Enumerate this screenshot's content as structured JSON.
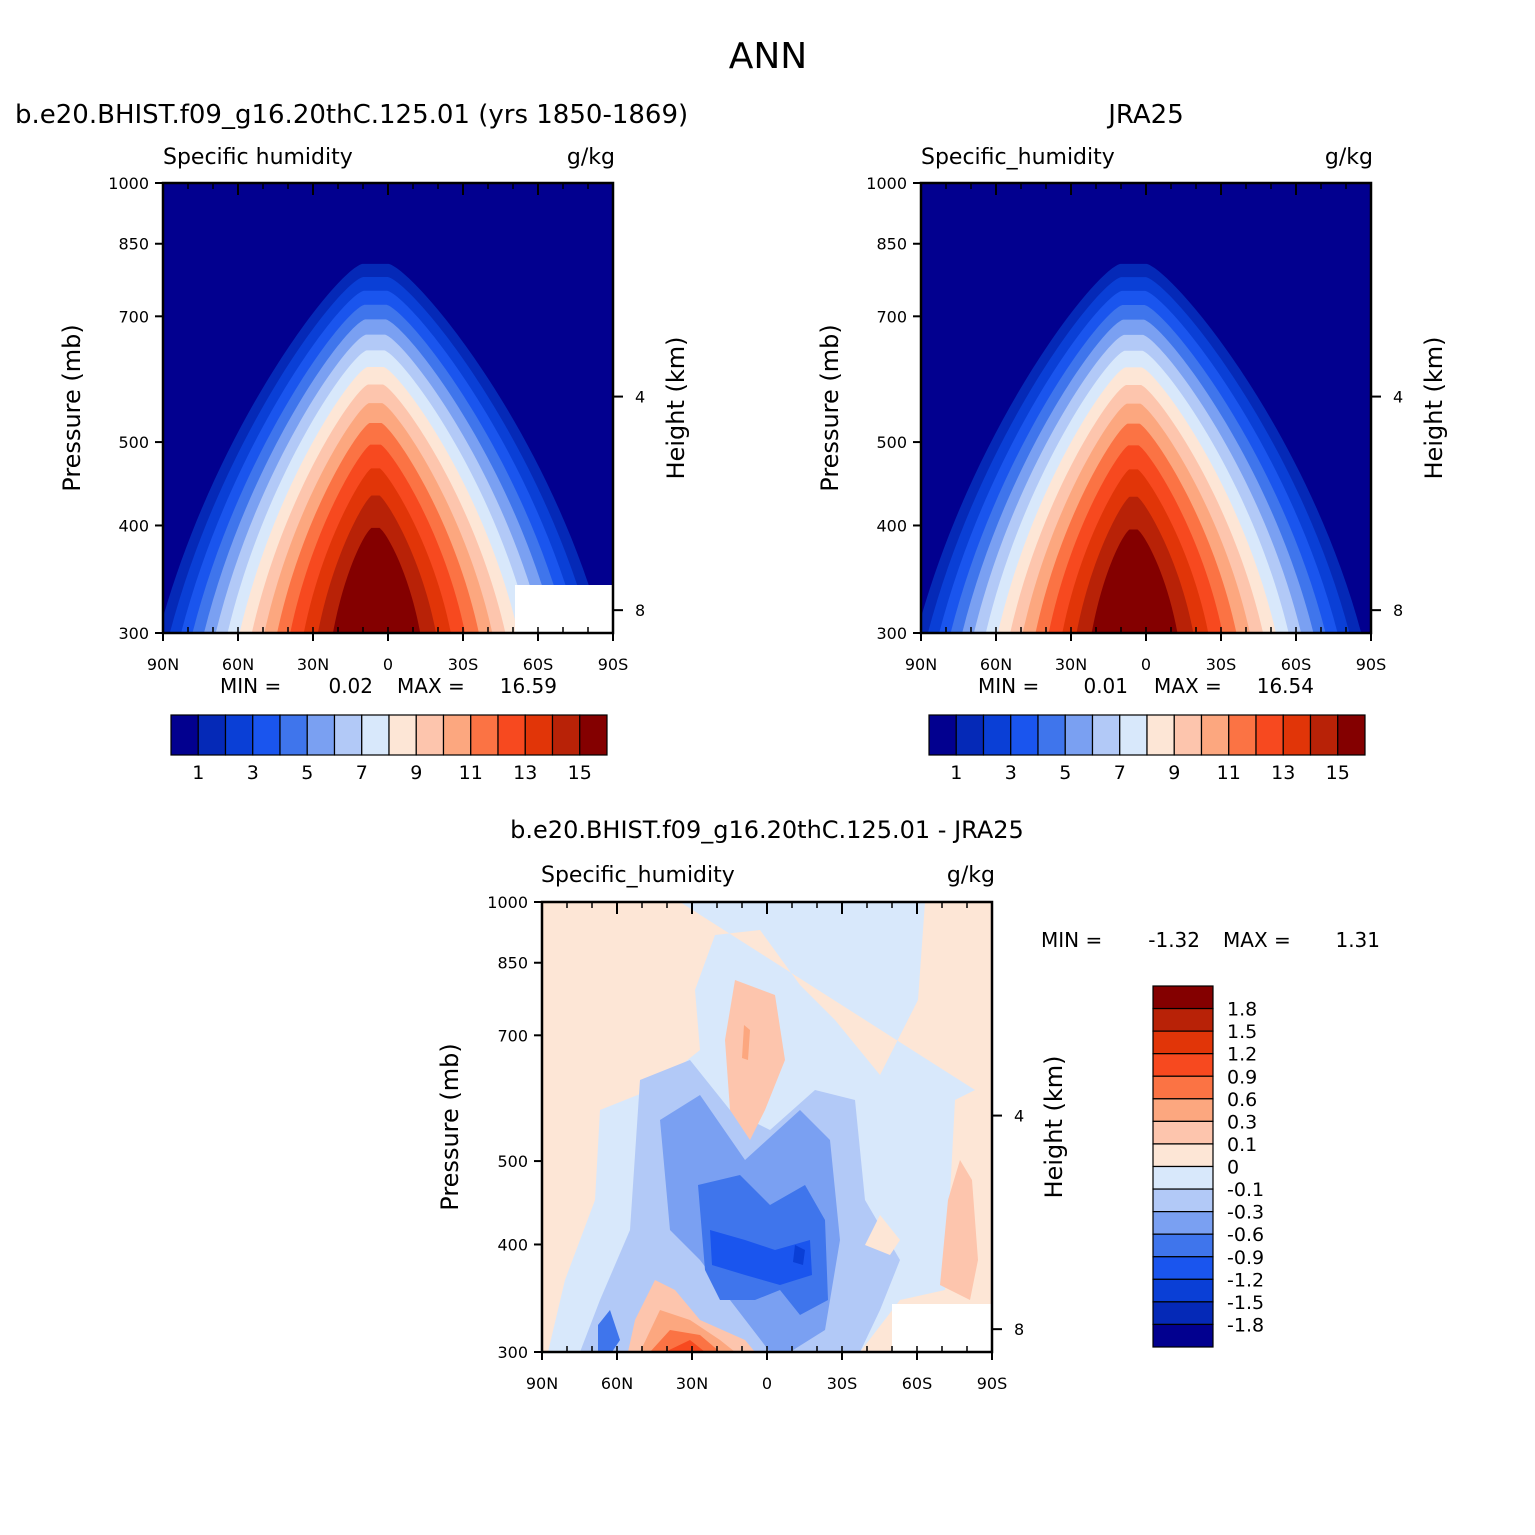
{
  "figure": {
    "title": "ANN"
  },
  "palettes": {
    "sequential": [
      "#02008f",
      "#0529b7",
      "#0a3fd6",
      "#1a55ee",
      "#3f75ec",
      "#7aa0f2",
      "#b2c9f7",
      "#d8e8fb",
      "#fde6d6",
      "#fdc5ad",
      "#fca77f",
      "#fb7344",
      "#f7491f",
      "#e13508",
      "#b82207",
      "#840000"
    ],
    "diverging": [
      "#840000",
      "#b82207",
      "#e13508",
      "#f7491f",
      "#fb7344",
      "#fca77f",
      "#fdc5ad",
      "#fde6d6",
      "#d8e8fb",
      "#b2c9f7",
      "#7aa0f2",
      "#3f75ec",
      "#1a55ee",
      "#0a3fd6",
      "#0529b7",
      "#02008f"
    ]
  },
  "chart_data": [
    {
      "type": "heatmap",
      "id": "model",
      "title": "b.e20.BHIST.f09_g16.20thC.125.01 (yrs 1850-1869)",
      "subtitle_left": "Specific humidity",
      "subtitle_right": "g/kg",
      "ylabel": "Pressure (mb)",
      "y2label": "Height (km)",
      "x_ticks": [
        "90N",
        "60N",
        "30N",
        "0",
        "30S",
        "60S",
        "90S"
      ],
      "y_ticks": [
        300,
        400,
        500,
        700,
        850,
        1000
      ],
      "y2_ticks": [
        8,
        4
      ],
      "xlim": [
        90,
        -90
      ],
      "ylim": [
        1000,
        300
      ],
      "min_label": "MIN =",
      "min": "0.02",
      "max_label": "MAX =",
      "max": "16.59",
      "peak_value": 16.59,
      "peak_lat": 5,
      "colorbar_labels": [
        "1",
        "3",
        "5",
        "7",
        "9",
        "11",
        "13",
        "15"
      ],
      "colorbar_levels": [
        1,
        2,
        3,
        4,
        5,
        6,
        7,
        8,
        9,
        10,
        11,
        12,
        13,
        14,
        15
      ]
    },
    {
      "type": "heatmap",
      "id": "obs",
      "title": "JRA25",
      "subtitle_left": "Specific_humidity",
      "subtitle_right": "g/kg",
      "ylabel": "Pressure (mb)",
      "y2label": "Height (km)",
      "x_ticks": [
        "90N",
        "60N",
        "30N",
        "0",
        "30S",
        "60S",
        "90S"
      ],
      "y_ticks": [
        300,
        400,
        500,
        700,
        850,
        1000
      ],
      "y2_ticks": [
        8,
        4
      ],
      "xlim": [
        90,
        -90
      ],
      "ylim": [
        1000,
        300
      ],
      "min_label": "MIN =",
      "min": "0.01",
      "max_label": "MAX =",
      "max": "16.54",
      "peak_value": 16.54,
      "peak_lat": 5,
      "colorbar_labels": [
        "1",
        "3",
        "5",
        "7",
        "9",
        "11",
        "13",
        "15"
      ],
      "colorbar_levels": [
        1,
        2,
        3,
        4,
        5,
        6,
        7,
        8,
        9,
        10,
        11,
        12,
        13,
        14,
        15
      ]
    },
    {
      "type": "heatmap",
      "id": "diff",
      "title": "b.e20.BHIST.f09_g16.20thC.125.01 - JRA25",
      "subtitle_left": "Specific_humidity",
      "subtitle_right": "g/kg",
      "ylabel": "Pressure (mb)",
      "y2label": "Height (km)",
      "x_ticks": [
        "90N",
        "60N",
        "30N",
        "0",
        "30S",
        "60S",
        "90S"
      ],
      "y_ticks": [
        300,
        400,
        500,
        700,
        850,
        1000
      ],
      "y2_ticks": [
        8,
        4
      ],
      "xlim": [
        90,
        -90
      ],
      "ylim": [
        1000,
        300
      ],
      "min_label": "MIN =",
      "min": "-1.32",
      "max_label": "MAX =",
      "max": "1.31",
      "colorbar_labels": [
        "1.8",
        "1.5",
        "1.2",
        "0.9",
        "0.6",
        "0.3",
        "0.1",
        "0",
        "-0.1",
        "-0.3",
        "-0.6",
        "-0.9",
        "-1.2",
        "-1.5",
        "-1.8"
      ],
      "colorbar_levels": [
        1.8,
        1.5,
        1.2,
        0.9,
        0.6,
        0.3,
        0.1,
        0,
        -0.1,
        -0.3,
        -0.6,
        -0.9,
        -1.2,
        -1.5,
        -1.8
      ]
    }
  ]
}
